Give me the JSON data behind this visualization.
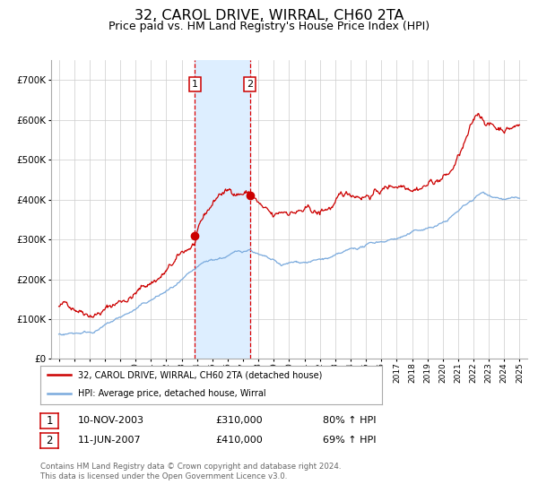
{
  "title": "32, CAROL DRIVE, WIRRAL, CH60 2TA",
  "subtitle": "Price paid vs. HM Land Registry's House Price Index (HPI)",
  "title_fontsize": 11.5,
  "subtitle_fontsize": 9,
  "background_color": "#ffffff",
  "plot_bg_color": "#ffffff",
  "grid_color": "#cccccc",
  "red_line_color": "#cc0000",
  "blue_line_color": "#7aaadd",
  "highlight_fill": "#ddeeff",
  "dashed_vline_color": "#dd0000",
  "marker_color": "#cc0000",
  "transaction1": {
    "date_num": 2003.87,
    "price": 310000,
    "label": "1",
    "date_str": "10-NOV-2003",
    "pct": "80%"
  },
  "transaction2": {
    "date_num": 2007.45,
    "price": 410000,
    "label": "2",
    "date_str": "11-JUN-2007",
    "pct": "69%"
  },
  "xlim": [
    1994.5,
    2025.5
  ],
  "ylim": [
    0,
    750000
  ],
  "yticks": [
    0,
    100000,
    200000,
    300000,
    400000,
    500000,
    600000,
    700000
  ],
  "ytick_labels": [
    "£0",
    "£100K",
    "£200K",
    "£300K",
    "£400K",
    "£500K",
    "£600K",
    "£700K"
  ],
  "legend_entry1": "32, CAROL DRIVE, WIRRAL, CH60 2TA (detached house)",
  "legend_entry2": "HPI: Average price, detached house, Wirral",
  "footer1": "Contains HM Land Registry data © Crown copyright and database right 2024.",
  "footer2": "This data is licensed under the Open Government Licence v3.0.",
  "table_row1": [
    "1",
    "10-NOV-2003",
    "£310,000",
    "80% ↑ HPI"
  ],
  "table_row2": [
    "2",
    "11-JUN-2007",
    "£410,000",
    "69% ↑ HPI"
  ]
}
